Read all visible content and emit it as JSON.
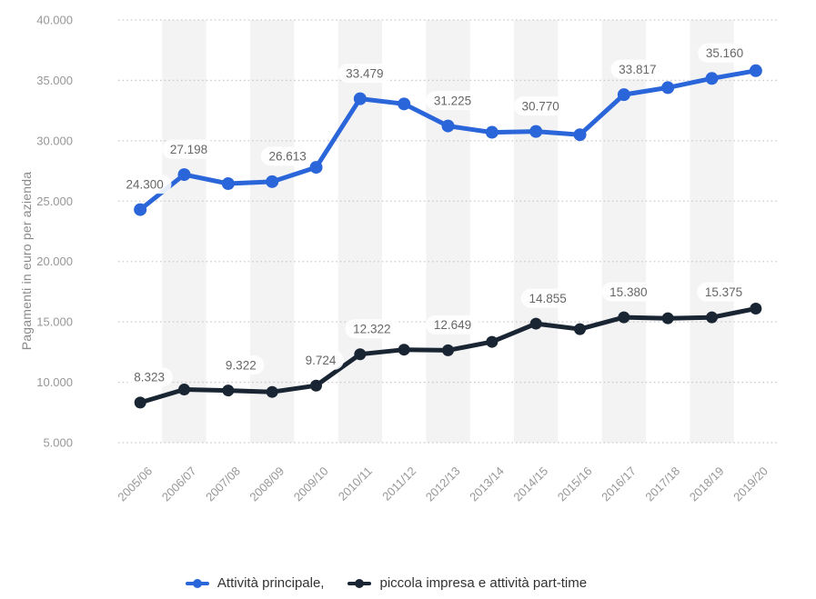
{
  "chart_data": {
    "type": "line",
    "title": "",
    "xlabel": "",
    "ylabel": "Pagamenti in euro per azienda",
    "ylim": [
      5000,
      40000
    ],
    "grid": "horizontal-dotted",
    "legend_position": "bottom",
    "plot_band_color": "#f3f3f3",
    "gridline_color": "#cbcbcb",
    "categories": [
      "2005/06",
      "2006/07",
      "2007/08",
      "2008/09",
      "2009/10",
      "2010/11",
      "2011/12",
      "2012/13",
      "2013/14",
      "2014/15",
      "2015/16",
      "2016/17",
      "2017/18",
      "2018/19",
      "2019/20"
    ],
    "y_ticks": [
      5000,
      10000,
      15000,
      20000,
      25000,
      30000,
      35000,
      40000
    ],
    "y_tick_labels": [
      "5.000",
      "10.000",
      "15.000",
      "20.000",
      "25.000",
      "30.000",
      "35.000",
      "40.000"
    ],
    "series": [
      {
        "name": "Attività principale,",
        "color": "#2a65d9",
        "values": [
          24300,
          27198,
          26450,
          26613,
          27800,
          33479,
          33050,
          31225,
          30700,
          30770,
          30500,
          33817,
          34400,
          35160,
          35800
        ],
        "point_labels": {
          "0": "24.300",
          "1": "27.198",
          "3": "26.613",
          "5": "33.479",
          "7": "31.225",
          "9": "30.770",
          "11": "33.817",
          "13": "35.160"
        }
      },
      {
        "name": "piccola impresa e attività part-time",
        "color": "#1a2533",
        "values": [
          8323,
          9400,
          9322,
          9200,
          9724,
          12322,
          12700,
          12649,
          13350,
          14855,
          14400,
          15380,
          15300,
          15375,
          16100
        ],
        "point_labels": {
          "0": "8.323",
          "2": "9.322",
          "4": "9.724",
          "5": "12.322",
          "7": "12.649",
          "9": "14.855",
          "11": "15.380",
          "13": "15.375"
        }
      }
    ]
  },
  "labels_color": "#666666",
  "axis_text_color": "#979797"
}
